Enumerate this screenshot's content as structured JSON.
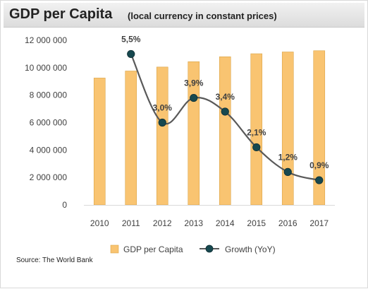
{
  "title": "GDP per Capita",
  "subtitle": "(local currency in constant prices)",
  "source": "Source: The World Bank",
  "chart_data": {
    "type": "bar",
    "categories": [
      "2010",
      "2011",
      "2012",
      "2013",
      "2014",
      "2015",
      "2016",
      "2017"
    ],
    "series": [
      {
        "name": "GDP per Capita",
        "type": "bar",
        "axis": "primary",
        "color": "#f9c471",
        "values": [
          9250000,
          9760000,
          10050000,
          10440000,
          10800000,
          11020000,
          11150000,
          11240000
        ]
      },
      {
        "name": "Growth (YoY)",
        "type": "line",
        "axis": "secondary",
        "color": "#17484f",
        "values": [
          null,
          5.5,
          3.0,
          3.9,
          3.4,
          2.1,
          1.2,
          0.9
        ],
        "labels": [
          "",
          "5,5%",
          "3,0%",
          "3,9%",
          "3,4%",
          "2,1%",
          "1,2%",
          "0,9%"
        ]
      }
    ],
    "y_ticks": [
      0,
      2000000,
      4000000,
      6000000,
      8000000,
      10000000,
      12000000
    ],
    "y_tick_labels": [
      "0",
      "2 000 000",
      "4 000 000",
      "6 000 000",
      "8 000 000",
      "10 000 000",
      "12 000 000"
    ],
    "ylim": [
      0,
      12000000
    ],
    "secondary_ylim": [
      0,
      6
    ],
    "grid": false,
    "legend": "bottom",
    "xlabel": "",
    "ylabel": ""
  }
}
